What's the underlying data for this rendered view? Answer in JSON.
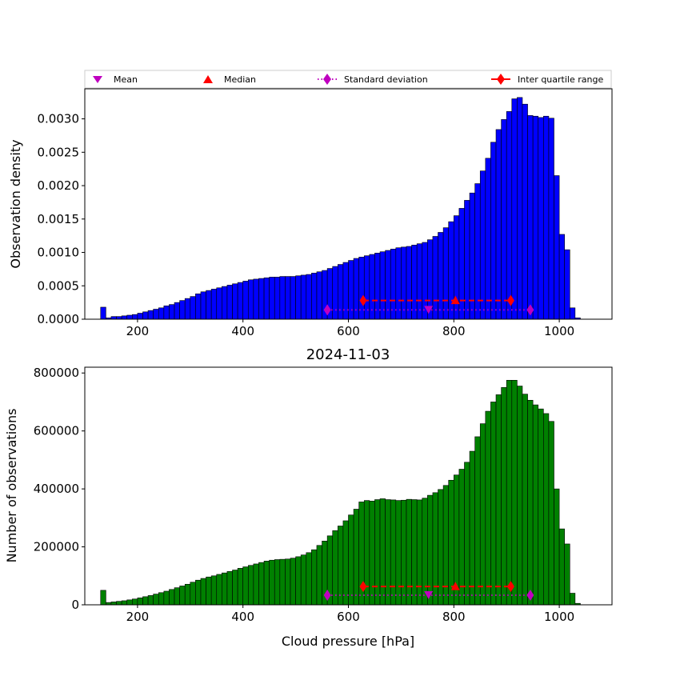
{
  "chart_data": [
    {
      "type": "bar",
      "title": "",
      "xlabel": "",
      "ylabel": "Observation density",
      "xlim": [
        100,
        1100
      ],
      "ylim": [
        0,
        0.00345
      ],
      "bar_color": "#0000ff",
      "bin_width": 10,
      "yticks": [
        "0.0000",
        "0.0005",
        "0.0010",
        "0.0015",
        "0.0020",
        "0.0025",
        "0.0030"
      ],
      "ytick_values": [
        0,
        0.0005,
        0.001,
        0.0015,
        0.002,
        0.0025,
        0.003
      ],
      "xticks": [
        "200",
        "400",
        "600",
        "800",
        "1000"
      ],
      "xtick_values": [
        200,
        400,
        600,
        800,
        1000
      ],
      "bin_starts": [
        130,
        140,
        150,
        160,
        170,
        180,
        190,
        200,
        210,
        220,
        230,
        240,
        250,
        260,
        270,
        280,
        290,
        300,
        310,
        320,
        330,
        340,
        350,
        360,
        370,
        380,
        390,
        400,
        410,
        420,
        430,
        440,
        450,
        460,
        470,
        480,
        490,
        500,
        510,
        520,
        530,
        540,
        550,
        560,
        570,
        580,
        590,
        600,
        610,
        620,
        630,
        640,
        650,
        660,
        670,
        680,
        690,
        700,
        710,
        720,
        730,
        740,
        750,
        760,
        770,
        780,
        790,
        800,
        810,
        820,
        830,
        840,
        850,
        860,
        870,
        880,
        890,
        900,
        910,
        920,
        930,
        940,
        950,
        960,
        970,
        980,
        990,
        1000,
        1010,
        1020,
        1030
      ],
      "values": [
        0.00018,
        2e-05,
        4e-05,
        4e-05,
        5e-05,
        6e-05,
        7e-05,
        9e-05,
        0.00011,
        0.00013,
        0.00015,
        0.00017,
        0.0002,
        0.00022,
        0.00025,
        0.00028,
        0.00031,
        0.00034,
        0.00038,
        0.00041,
        0.00043,
        0.00045,
        0.00047,
        0.00049,
        0.00051,
        0.00053,
        0.00055,
        0.00057,
        0.00059,
        0.0006,
        0.00061,
        0.00062,
        0.00063,
        0.00063,
        0.00064,
        0.00064,
        0.00064,
        0.00065,
        0.00066,
        0.00067,
        0.00069,
        0.00071,
        0.00073,
        0.00076,
        0.00079,
        0.00082,
        0.00085,
        0.00088,
        0.00091,
        0.00093,
        0.00095,
        0.00097,
        0.00099,
        0.00101,
        0.00103,
        0.00105,
        0.00107,
        0.00108,
        0.00109,
        0.00111,
        0.00113,
        0.00115,
        0.00119,
        0.00124,
        0.0013,
        0.00137,
        0.00146,
        0.00155,
        0.00166,
        0.00178,
        0.00189,
        0.00203,
        0.00222,
        0.00241,
        0.00265,
        0.00284,
        0.00299,
        0.00311,
        0.0033,
        0.00332,
        0.00322,
        0.00305,
        0.00304,
        0.00302,
        0.00304,
        0.00301,
        0.00215,
        0.00127,
        0.00104,
        0.00017,
        2e-05
      ],
      "annotations": {
        "mean": {
          "x": 752,
          "y": 0.00014
        },
        "median": {
          "x": 803,
          "y": 0.00028
        },
        "std_range": [
          560,
          945
        ],
        "std_y": 0.00014,
        "iqr_range": [
          628,
          908
        ],
        "iqr_y": 0.00028
      }
    },
    {
      "type": "bar",
      "title": "2024-11-03",
      "xlabel": "Cloud pressure [hPa]",
      "ylabel": "Number of observations",
      "xlim": [
        100,
        1100
      ],
      "ylim": [
        0,
        820000
      ],
      "bar_color": "#008000",
      "bin_width": 10,
      "yticks": [
        "0",
        "200000",
        "400000",
        "600000",
        "800000"
      ],
      "ytick_values": [
        0,
        200000,
        400000,
        600000,
        800000
      ],
      "xticks": [
        "200",
        "400",
        "600",
        "800",
        "1000"
      ],
      "xtick_values": [
        200,
        400,
        600,
        800,
        1000
      ],
      "bin_starts": [
        130,
        140,
        150,
        160,
        170,
        180,
        190,
        200,
        210,
        220,
        230,
        240,
        250,
        260,
        270,
        280,
        290,
        300,
        310,
        320,
        330,
        340,
        350,
        360,
        370,
        380,
        390,
        400,
        410,
        420,
        430,
        440,
        450,
        460,
        470,
        480,
        490,
        500,
        510,
        520,
        530,
        540,
        550,
        560,
        570,
        580,
        590,
        600,
        610,
        620,
        630,
        640,
        650,
        660,
        670,
        680,
        690,
        700,
        710,
        720,
        730,
        740,
        750,
        760,
        770,
        780,
        790,
        800,
        810,
        820,
        830,
        840,
        850,
        860,
        870,
        880,
        890,
        900,
        910,
        920,
        930,
        940,
        950,
        960,
        970,
        980,
        990,
        1000,
        1010,
        1020,
        1030
      ],
      "values": [
        50000,
        8000,
        10000,
        12000,
        14000,
        17000,
        20000,
        24000,
        28000,
        32000,
        37000,
        42000,
        47000,
        53000,
        59000,
        65000,
        71000,
        78000,
        85000,
        91000,
        96000,
        100000,
        105000,
        110000,
        115000,
        120000,
        126000,
        131000,
        136000,
        141000,
        146000,
        151000,
        154000,
        156000,
        157000,
        158000,
        161000,
        166000,
        172000,
        180000,
        190000,
        205000,
        220000,
        238000,
        256000,
        272000,
        290000,
        310000,
        330000,
        355000,
        360000,
        358000,
        363000,
        366000,
        363000,
        362000,
        360000,
        361000,
        364000,
        363000,
        362000,
        368000,
        378000,
        387000,
        398000,
        412000,
        430000,
        448000,
        468000,
        492000,
        530000,
        580000,
        625000,
        668000,
        700000,
        725000,
        750000,
        775000,
        775000,
        755000,
        727000,
        706000,
        690000,
        676000,
        660000,
        633000,
        400000,
        262000,
        210000,
        40000,
        5000
      ],
      "annotations": {
        "mean": {
          "x": 752,
          "y": 33000
        },
        "median": {
          "x": 803,
          "y": 63000
        },
        "std_range": [
          560,
          945
        ],
        "std_y": 33000,
        "iqr_range": [
          628,
          908
        ],
        "iqr_y": 63000
      }
    }
  ],
  "legend": {
    "placement": "top",
    "entries": [
      {
        "label": "Mean",
        "color": "#bf00bf",
        "marker": "triangle-down"
      },
      {
        "label": "Median",
        "color": "#ff0000",
        "marker": "triangle-up"
      },
      {
        "label": "Standard deviation",
        "color": "#bf00bf",
        "marker": "thin-diamond"
      },
      {
        "label": "Inter quartile range",
        "color": "#ff0000",
        "marker": "thin-diamond"
      }
    ]
  }
}
